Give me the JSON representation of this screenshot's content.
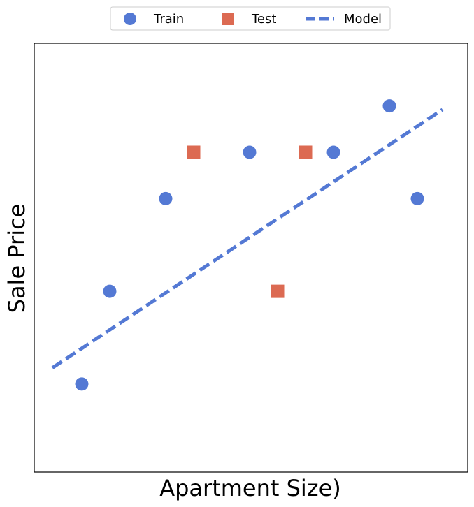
{
  "chart_data": {
    "type": "scatter",
    "title": "",
    "xlabel": "Apartment Size)",
    "ylabel": "Sale Price",
    "xlim": [
      0.0,
      15.5
    ],
    "ylim": [
      0.0,
      9.25
    ],
    "grid": false,
    "ticks_visible": false,
    "legend": {
      "position": "top-center",
      "entries": [
        {
          "label": "Train",
          "marker": "circle",
          "color": "#5479d4"
        },
        {
          "label": "Test",
          "marker": "square",
          "color": "#dc6a52"
        },
        {
          "label": "Model",
          "marker": "dashed-line",
          "color": "#5479d4"
        }
      ]
    },
    "series": [
      {
        "name": "Train",
        "marker": "circle",
        "color": "#5479d4",
        "points": [
          {
            "x": 1.7,
            "y": 1.9
          },
          {
            "x": 2.7,
            "y": 3.9
          },
          {
            "x": 4.7,
            "y": 5.9
          },
          {
            "x": 7.7,
            "y": 6.9
          },
          {
            "x": 10.7,
            "y": 6.9
          },
          {
            "x": 12.7,
            "y": 7.9
          },
          {
            "x": 13.7,
            "y": 5.9
          }
        ]
      },
      {
        "name": "Test",
        "marker": "square",
        "color": "#dc6a52",
        "points": [
          {
            "x": 5.7,
            "y": 6.9
          },
          {
            "x": 8.7,
            "y": 3.9
          },
          {
            "x": 9.7,
            "y": 6.9
          }
        ]
      },
      {
        "name": "Model",
        "marker": "dashed-line",
        "color": "#5479d4",
        "points": [
          {
            "x": 0.65,
            "y": 2.25
          },
          {
            "x": 14.6,
            "y": 7.82
          }
        ]
      }
    ]
  }
}
